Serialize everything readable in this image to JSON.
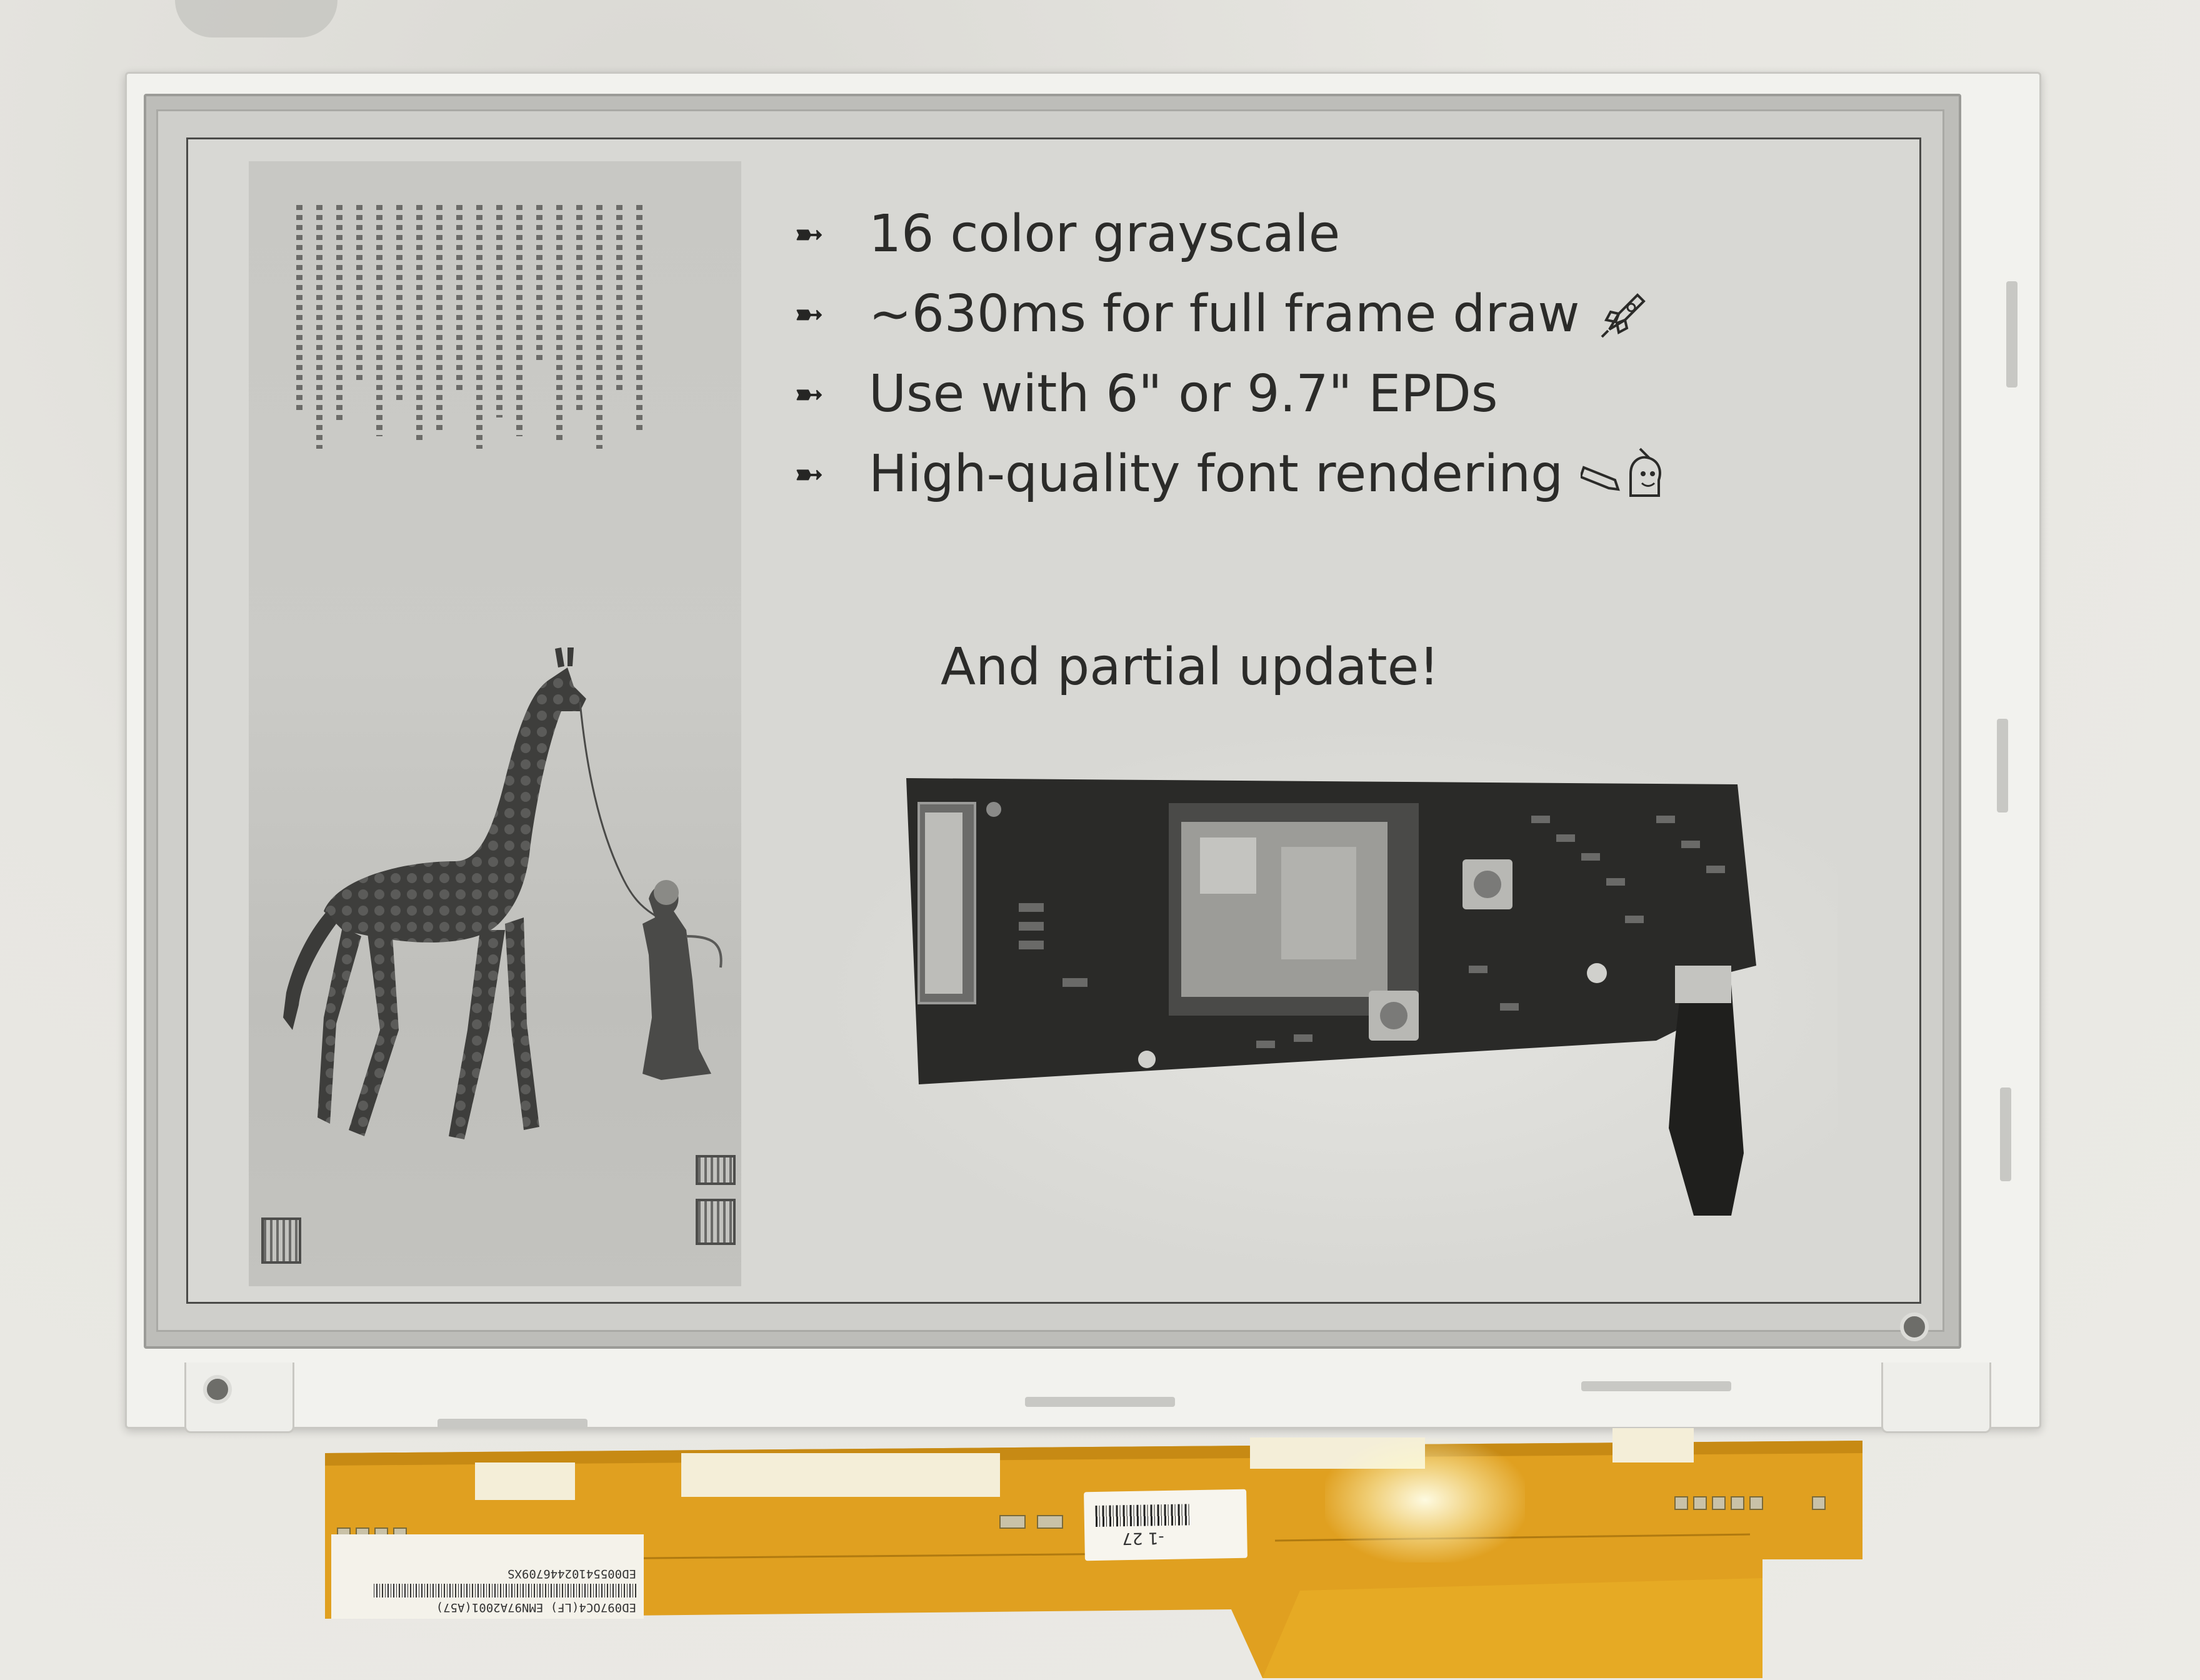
{
  "slide": {
    "bullet_arrow": "➼",
    "bullets": [
      {
        "text": "16 color grayscale",
        "icon": ""
      },
      {
        "text": "~630ms for full frame draw",
        "icon": "rocket-icon"
      },
      {
        "text": "Use with 6\" or 9.7\" EPDs",
        "icon": ""
      },
      {
        "text": "High-quality font rendering",
        "icon": "pencil-icon and artist-icon"
      }
    ],
    "partial_update": "And partial update!"
  },
  "cable": {
    "label_lines": [
      "ED097OC4(LF)   EMN97A2001(A57)",
      "ED00554102446709XS"
    ],
    "barcode_number": "-1 27"
  },
  "colors": {
    "epaper_background": "#d8d8d4",
    "ink": "#2b2b29",
    "flex_cable": "#e0a020"
  }
}
